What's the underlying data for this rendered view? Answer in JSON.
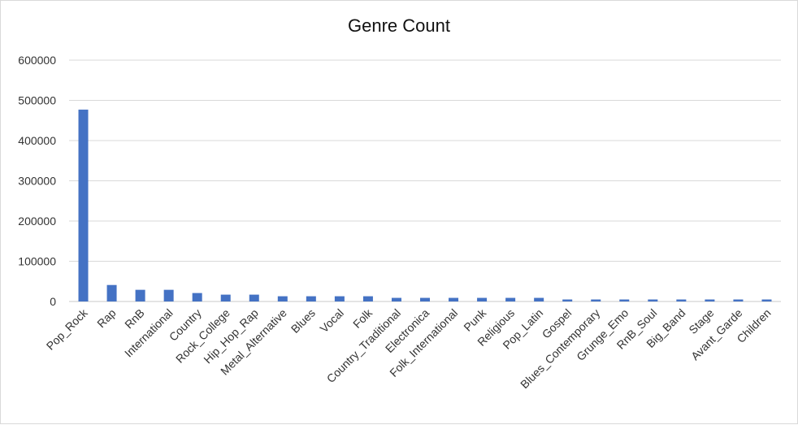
{
  "chart_data": {
    "type": "bar",
    "title": "Genre Count",
    "xlabel": "",
    "ylabel": "",
    "ylim": [
      0,
      600000
    ],
    "yticks": [
      0,
      100000,
      200000,
      300000,
      400000,
      500000,
      600000
    ],
    "ytick_labels": [
      "0",
      "100000",
      "200000",
      "300000",
      "400000",
      "500000",
      "600000"
    ],
    "grid": true,
    "legend": "none",
    "bar_color": "#4472C4",
    "categories": [
      "Pop_Rock",
      "Rap",
      "RnB",
      "International",
      "Country",
      "Rock_College",
      "Hip_Hop_Rap",
      "Metal_Alternative",
      "Blues",
      "Vocal",
      "Folk",
      "Country_Traditional",
      "Electronica",
      "Folk_International",
      "Punk",
      "Religious",
      "Pop_Latin",
      "Gospel",
      "Blues_Contemporary",
      "Grunge_Emo",
      "RnB_Soul",
      "Big_Band",
      "Stage",
      "Avant_Garde",
      "Children"
    ],
    "values": [
      477000,
      41000,
      29000,
      29000,
      21000,
      17000,
      17000,
      13000,
      13000,
      13000,
      13000,
      9000,
      9000,
      9000,
      9000,
      9000,
      9000,
      5000,
      5000,
      5000,
      5000,
      5000,
      5000,
      5000,
      5000
    ]
  }
}
